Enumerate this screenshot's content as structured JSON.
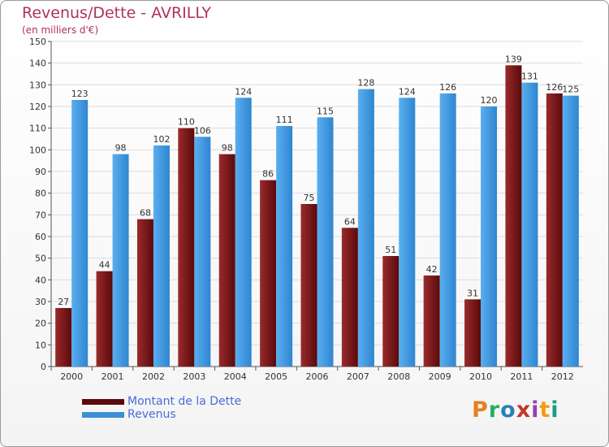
{
  "chart_data": {
    "type": "bar",
    "title": "Revenus/Dette - AVRILLY",
    "subtitle": "(en milliers d'€)",
    "categories": [
      "2000",
      "2001",
      "2002",
      "2003",
      "2004",
      "2005",
      "2006",
      "2007",
      "2008",
      "2009",
      "2010",
      "2011",
      "2012"
    ],
    "series": [
      {
        "name": "Montant de la Dette",
        "color": "#7a1518",
        "values": [
          27,
          44,
          68,
          110,
          98,
          86,
          75,
          64,
          51,
          42,
          31,
          139,
          126
        ]
      },
      {
        "name": "Revenus",
        "color": "#3a8fd8",
        "values": [
          123,
          98,
          102,
          106,
          124,
          111,
          115,
          128,
          124,
          126,
          120,
          131,
          125
        ]
      }
    ],
    "ylim": [
      0,
      150
    ],
    "yticks": [
      0,
      10,
      20,
      30,
      40,
      50,
      60,
      70,
      80,
      90,
      100,
      110,
      120,
      130,
      140,
      150
    ],
    "grid": true,
    "legend_position": "bottom-left"
  },
  "legend": {
    "items": [
      {
        "label": "Montant de la Dette",
        "color": "#5a0a0c"
      },
      {
        "label": "Revenus",
        "color": "#3a8fd8"
      }
    ]
  },
  "brand": {
    "letters": [
      "P",
      "r",
      "o",
      "x",
      "i",
      "t",
      "i"
    ],
    "colors": [
      "#e67e22",
      "#27ae60",
      "#2980b9",
      "#c0392b",
      "#8e44ad",
      "#f39c12",
      "#16a085"
    ]
  }
}
